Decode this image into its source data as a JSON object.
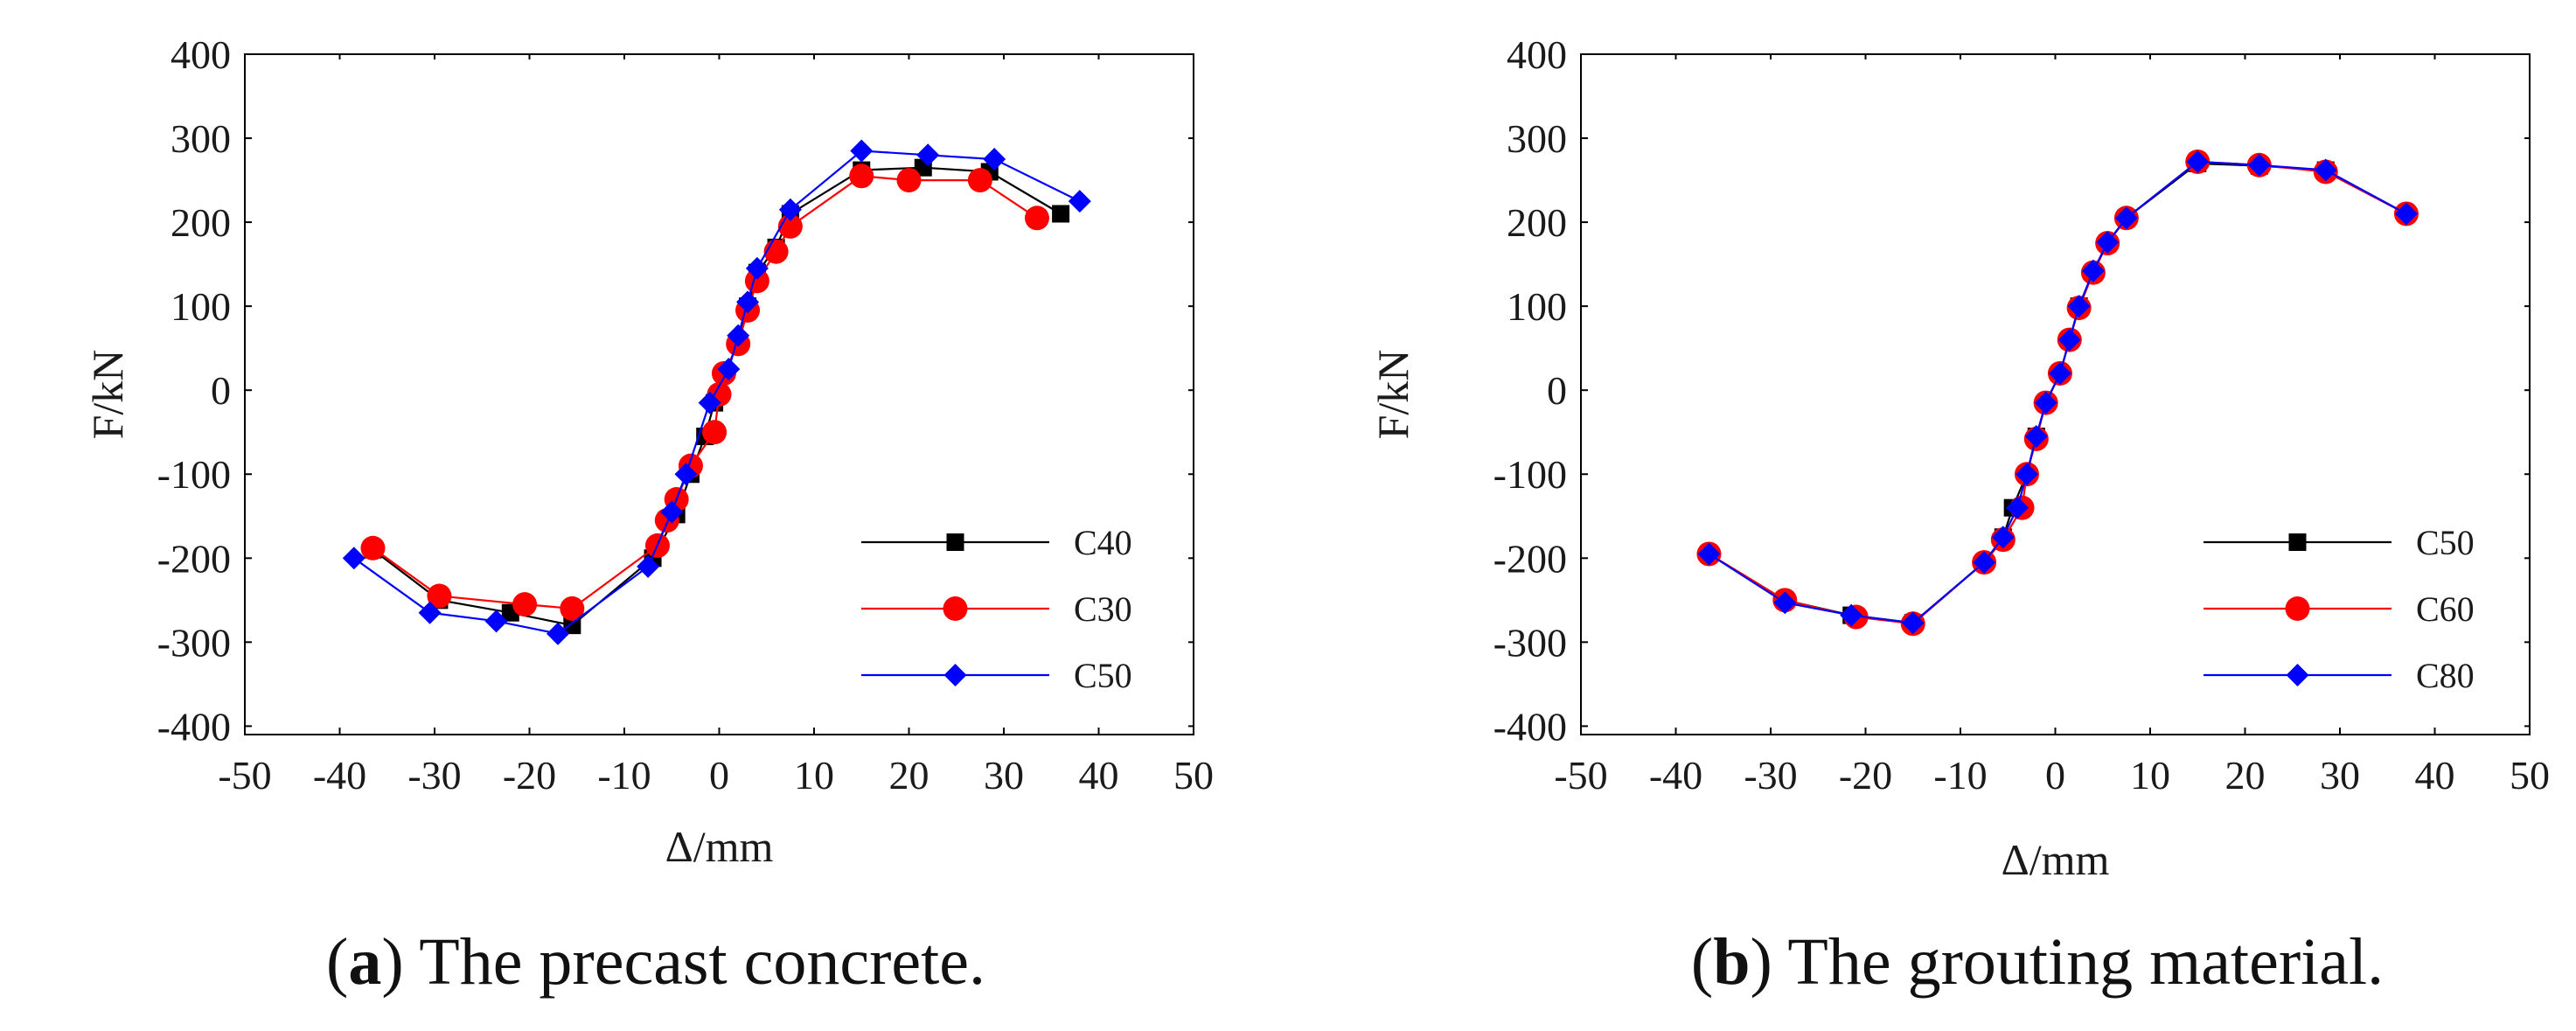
{
  "chart_data": [
    {
      "type": "line",
      "panel_letter": "a",
      "caption": "The precast concrete.",
      "xlabel": "Δ/mm",
      "ylabel": "F/kN",
      "xlim": [
        -50,
        50
      ],
      "ylim": [
        -410,
        400
      ],
      "xticks": [
        -50,
        -40,
        -30,
        -20,
        -10,
        0,
        10,
        20,
        30,
        40,
        50
      ],
      "yticks": [
        400,
        300,
        200,
        100,
        0,
        -100,
        -200,
        -300,
        -400
      ],
      "grid": false,
      "legend": "bottom-right",
      "series": [
        {
          "name": "C40",
          "color": "#000000",
          "marker": "square",
          "points": [
            [
              -36.5,
              -190
            ],
            [
              -29.5,
              -250
            ],
            [
              -22,
              -265
            ],
            [
              -15.5,
              -280
            ],
            [
              -7,
              -200
            ],
            [
              -4.5,
              -148
            ],
            [
              -3,
              -100
            ],
            [
              -1.5,
              -55
            ],
            [
              -0.5,
              -15
            ],
            [
              0.5,
              20
            ],
            [
              2,
              55
            ],
            [
              3,
              100
            ],
            [
              4,
              140
            ],
            [
              6,
              170
            ],
            [
              7.5,
              210
            ],
            [
              15,
              262
            ],
            [
              21.5,
              265
            ],
            [
              28.5,
              260
            ],
            [
              36,
              210
            ]
          ]
        },
        {
          "name": "C30",
          "color": "#ff0000",
          "marker": "circle",
          "points": [
            [
              -36.5,
              -188
            ],
            [
              -29.5,
              -245
            ],
            [
              -20.5,
              -255
            ],
            [
              -15.5,
              -260
            ],
            [
              -6.5,
              -185
            ],
            [
              -5.5,
              -155
            ],
            [
              -4.5,
              -130
            ],
            [
              -3,
              -90
            ],
            [
              -0.5,
              -50
            ],
            [
              0,
              -5
            ],
            [
              0.5,
              20
            ],
            [
              2,
              55
            ],
            [
              3,
              95
            ],
            [
              4,
              130
            ],
            [
              6,
              165
            ],
            [
              7.5,
              195
            ],
            [
              15,
              255
            ],
            [
              20,
              250
            ],
            [
              27.5,
              250
            ],
            [
              33.5,
              205
            ]
          ]
        },
        {
          "name": "C50",
          "color": "#0000ff",
          "marker": "diamond",
          "points": [
            [
              -38.5,
              -200
            ],
            [
              -30.5,
              -265
            ],
            [
              -23.5,
              -275
            ],
            [
              -17,
              -290
            ],
            [
              -7.5,
              -210
            ],
            [
              -5,
              -145
            ],
            [
              -3.5,
              -100
            ],
            [
              -1,
              -15
            ],
            [
              1,
              25
            ],
            [
              2,
              65
            ],
            [
              3,
              105
            ],
            [
              4,
              145
            ],
            [
              7.5,
              215
            ],
            [
              15,
              285
            ],
            [
              22,
              280
            ],
            [
              29,
              275
            ],
            [
              38,
              225
            ]
          ]
        }
      ]
    },
    {
      "type": "line",
      "panel_letter": "b",
      "caption": "The grouting material.",
      "xlabel": "Δ/mm",
      "ylabel": "F/kN",
      "xlim": [
        -50,
        50
      ],
      "ylim": [
        -410,
        400
      ],
      "xticks": [
        -50,
        -40,
        -30,
        -20,
        -10,
        0,
        10,
        20,
        30,
        40,
        50
      ],
      "yticks": [
        400,
        300,
        200,
        100,
        0,
        -100,
        -200,
        -300,
        -400
      ],
      "grid": false,
      "legend": "bottom-right",
      "series": [
        {
          "name": "C50",
          "color": "#000000",
          "marker": "square",
          "points": [
            [
              -36.5,
              -195
            ],
            [
              -28.5,
              -250
            ],
            [
              -21.5,
              -268
            ],
            [
              -15,
              -277
            ],
            [
              -7.5,
              -205
            ],
            [
              -5.5,
              -175
            ],
            [
              -4.5,
              -140
            ],
            [
              -3,
              -100
            ],
            [
              -2,
              -55
            ],
            [
              -1,
              -15
            ],
            [
              0.5,
              20
            ],
            [
              1.5,
              60
            ],
            [
              2.5,
              100
            ],
            [
              4,
              140
            ],
            [
              5.5,
              175
            ],
            [
              7.5,
              205
            ],
            [
              15,
              270
            ],
            [
              21.5,
              267
            ],
            [
              28.5,
              262
            ],
            [
              37,
              210
            ]
          ]
        },
        {
          "name": "C60",
          "color": "#ff0000",
          "marker": "circle",
          "points": [
            [
              -36.5,
              -195
            ],
            [
              -28.5,
              -250
            ],
            [
              -21,
              -270
            ],
            [
              -15,
              -278
            ],
            [
              -7.5,
              -205
            ],
            [
              -5.5,
              -178
            ],
            [
              -3.5,
              -140
            ],
            [
              -3,
              -100
            ],
            [
              -2,
              -58
            ],
            [
              -1,
              -15
            ],
            [
              0.5,
              20
            ],
            [
              1.5,
              60
            ],
            [
              2.5,
              98
            ],
            [
              4,
              140
            ],
            [
              5.5,
              175
            ],
            [
              7.5,
              205
            ],
            [
              15,
              272
            ],
            [
              21.5,
              268
            ],
            [
              28.5,
              260
            ],
            [
              37,
              210
            ]
          ]
        },
        {
          "name": "C80",
          "color": "#0000ff",
          "marker": "diamond",
          "points": [
            [
              -36.5,
              -195
            ],
            [
              -28.5,
              -253
            ],
            [
              -21.5,
              -268
            ],
            [
              -15,
              -277
            ],
            [
              -7.5,
              -205
            ],
            [
              -5.5,
              -175
            ],
            [
              -4,
              -140
            ],
            [
              -3,
              -100
            ],
            [
              -2,
              -55
            ],
            [
              -1,
              -15
            ],
            [
              0.5,
              20
            ],
            [
              1.5,
              60
            ],
            [
              2.5,
              100
            ],
            [
              4,
              142
            ],
            [
              5.5,
              176
            ],
            [
              7.5,
              205
            ],
            [
              15,
              272
            ],
            [
              21.5,
              268
            ],
            [
              28.5,
              262
            ],
            [
              37,
              210
            ]
          ]
        }
      ]
    }
  ]
}
